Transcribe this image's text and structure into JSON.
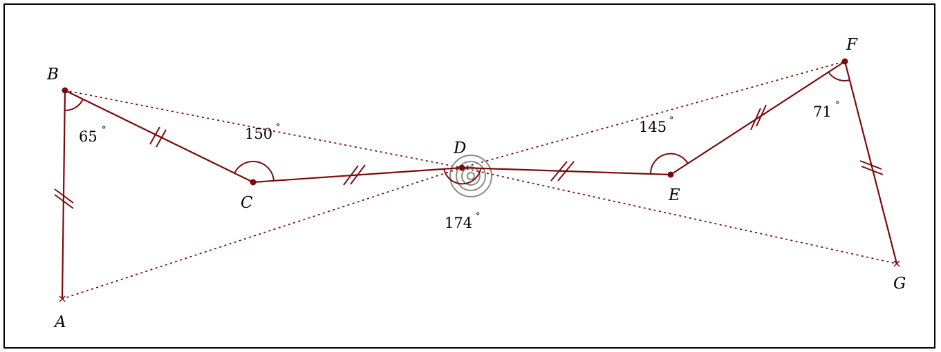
{
  "figure": {
    "colors": {
      "stroke": "#7b0a0a",
      "target_rings": "#888888",
      "text": "#000000"
    },
    "points": [
      {
        "id": "A",
        "label": "A",
        "marker": "cross"
      },
      {
        "id": "B",
        "label": "B",
        "marker": "dot"
      },
      {
        "id": "C",
        "label": "C",
        "marker": "dot"
      },
      {
        "id": "D",
        "label": "D",
        "marker": "dot"
      },
      {
        "id": "E",
        "label": "E",
        "marker": "dot"
      },
      {
        "id": "F",
        "label": "F",
        "marker": "dot"
      },
      {
        "id": "G",
        "label": "G",
        "marker": "cross"
      }
    ],
    "segments": [
      {
        "from": "A",
        "to": "B",
        "style": "solid",
        "ticks": 2
      },
      {
        "from": "B",
        "to": "C",
        "style": "solid",
        "ticks": 2
      },
      {
        "from": "C",
        "to": "D",
        "style": "solid",
        "ticks": 2
      },
      {
        "from": "D",
        "to": "E",
        "style": "solid",
        "ticks": 2
      },
      {
        "from": "E",
        "to": "F",
        "style": "solid",
        "ticks": 2
      },
      {
        "from": "F",
        "to": "G",
        "style": "solid",
        "ticks": 2
      },
      {
        "from": "B",
        "to": "D",
        "style": "dotted"
      },
      {
        "from": "A",
        "to": "D",
        "style": "dotted"
      },
      {
        "from": "D",
        "to": "F",
        "style": "dotted"
      },
      {
        "from": "D",
        "to": "G",
        "style": "dotted"
      }
    ],
    "angles": [
      {
        "vertex": "B",
        "value": "65",
        "unit": "°"
      },
      {
        "vertex": "C",
        "value": "150",
        "unit": "°"
      },
      {
        "vertex": "D",
        "value": "174",
        "unit": "°"
      },
      {
        "vertex": "E",
        "value": "145",
        "unit": "°"
      },
      {
        "vertex": "F",
        "value": "71",
        "unit": "°"
      }
    ],
    "target_rings": 4
  }
}
